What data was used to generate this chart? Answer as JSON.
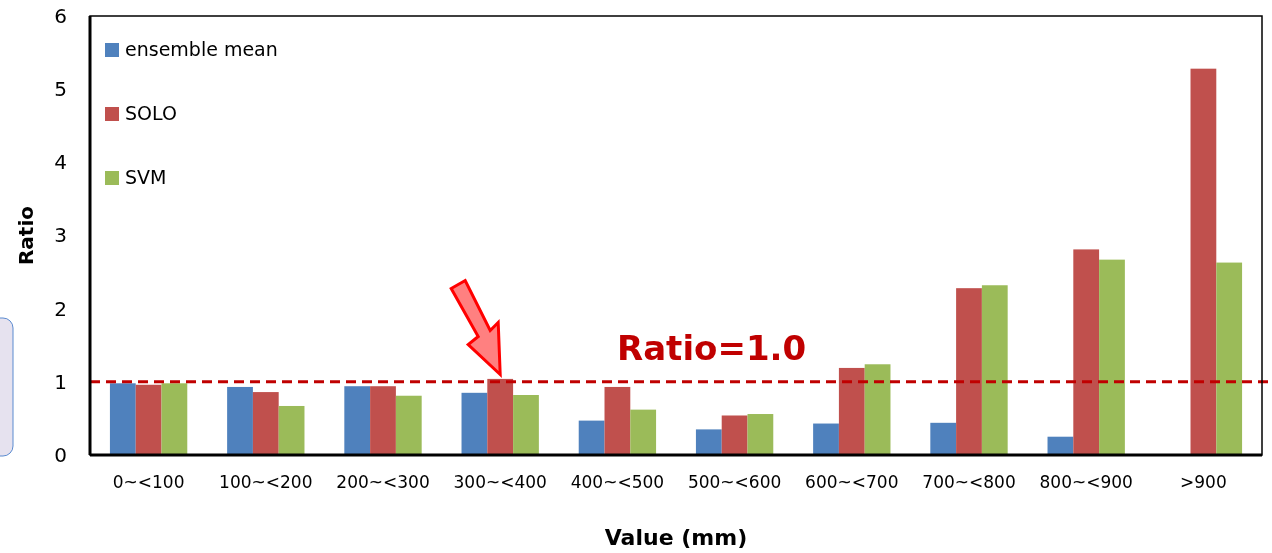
{
  "chart_data": {
    "type": "bar",
    "xlabel": "Value (mm)",
    "ylabel": "Ratio",
    "categories": [
      "0~<100",
      "100~<200",
      "200~<300",
      "300~<400",
      "400~<500",
      "500~<600",
      "600~<700",
      "700~<800",
      "800~<900",
      ">900"
    ],
    "series": [
      {
        "name": "ensemble mean",
        "color": "#4f81bd",
        "values": [
          0.98,
          0.93,
          0.94,
          0.85,
          0.47,
          0.35,
          0.43,
          0.44,
          0.25,
          null
        ]
      },
      {
        "name": "SOLO",
        "color": "#c0504d",
        "values": [
          0.96,
          0.86,
          0.94,
          1.04,
          0.93,
          0.54,
          1.19,
          2.28,
          2.81,
          5.28
        ]
      },
      {
        "name": "SVM",
        "color": "#9bbb59",
        "values": [
          0.98,
          0.67,
          0.81,
          0.82,
          0.62,
          0.56,
          1.24,
          2.32,
          2.67,
          2.63
        ]
      }
    ],
    "ylim": [
      0,
      6
    ],
    "yticks": [
      0,
      1,
      2,
      3,
      4,
      5,
      6
    ],
    "grid": false,
    "legend": "top left",
    "ref_lines": [
      {
        "axis": "y",
        "value": 1.0,
        "label": "Ratio=1.0",
        "color": "#c00000",
        "line_style": "dashed"
      }
    ]
  }
}
